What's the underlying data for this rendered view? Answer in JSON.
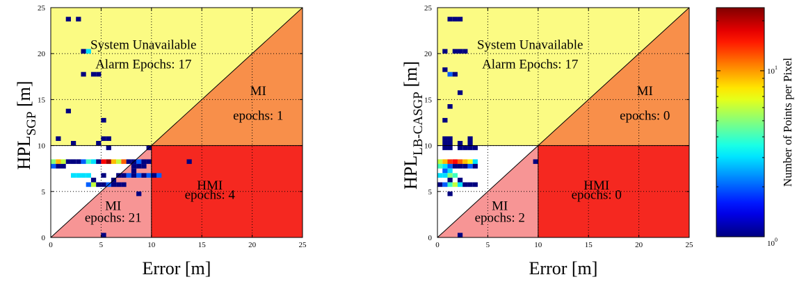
{
  "chart_data": [
    {
      "type": "heatmap",
      "xlabel": "Error [m]",
      "ylabel": {
        "main": "HPL",
        "sub": "SGP",
        "unit": "[m]"
      },
      "xlim": [
        0,
        25
      ],
      "ylim": [
        0,
        25
      ],
      "xticks": [
        "0",
        "5",
        "10",
        "15",
        "20",
        "25"
      ],
      "yticks": [
        "0",
        "5",
        "10",
        "15",
        "20",
        "25"
      ],
      "grid": true,
      "regions": [
        {
          "name": "System Unavailable",
          "color": "#fbfb83",
          "polygon": [
            [
              0,
              10
            ],
            [
              0,
              25
            ],
            [
              25,
              25
            ],
            [
              10,
              10
            ]
          ]
        },
        {
          "name": "MI (upper)",
          "color": "#f88f4a",
          "polygon": [
            [
              10,
              10
            ],
            [
              25,
              25
            ],
            [
              25,
              10
            ]
          ]
        },
        {
          "name": "HMI",
          "color": "#f52820",
          "polygon": [
            [
              10,
              0
            ],
            [
              10,
              10
            ],
            [
              25,
              10
            ],
            [
              25,
              0
            ]
          ]
        },
        {
          "name": "MI (lower)",
          "color": "#f79595",
          "polygon": [
            [
              0,
              0
            ],
            [
              10,
              10
            ],
            [
              10,
              0
            ]
          ]
        }
      ],
      "annotations": [
        {
          "text": "System Unavailable",
          "x": 9.2,
          "y": 20.5
        },
        {
          "text": "Alarm Epochs: 17",
          "x": 9.2,
          "y": 18.4
        },
        {
          "text": "MI",
          "x": 20.6,
          "y": 15.5
        },
        {
          "text": "epochs: 1",
          "x": 20.6,
          "y": 12.8
        },
        {
          "text": "HMI",
          "x": 15.8,
          "y": 5.2
        },
        {
          "text": "epochs: 4",
          "x": 15.8,
          "y": 4.2
        },
        {
          "text": "MI",
          "x": 6.2,
          "y": 3.0
        },
        {
          "text": "epochs: 21",
          "x": 6.2,
          "y": 1.7
        }
      ],
      "cell_width": 0.5,
      "cell_height": 0.5,
      "points": [
        [
          1.75,
          23.75,
          1
        ],
        [
          2.75,
          23.75,
          1
        ],
        [
          3.25,
          20.25,
          1
        ],
        [
          3.75,
          20.25,
          3
        ],
        [
          3.25,
          17.75,
          1
        ],
        [
          4.25,
          17.75,
          1
        ],
        [
          4.75,
          17.75,
          1
        ],
        [
          1.75,
          13.75,
          1
        ],
        [
          5.25,
          12.75,
          1
        ],
        [
          0.75,
          10.75,
          1
        ],
        [
          5.25,
          10.75,
          1
        ],
        [
          5.75,
          10.75,
          1
        ],
        [
          2.25,
          10.25,
          1
        ],
        [
          4.75,
          10.25,
          1
        ],
        [
          5.75,
          9.75,
          1
        ],
        [
          9.75,
          9.75,
          1
        ],
        [
          0.25,
          8.25,
          5
        ],
        [
          0.75,
          8.25,
          9
        ],
        [
          1.25,
          8.25,
          6
        ],
        [
          1.75,
          8.25,
          1
        ],
        [
          2.25,
          8.25,
          1
        ],
        [
          2.75,
          8.25,
          1
        ],
        [
          3.25,
          8.25,
          2
        ],
        [
          3.75,
          8.25,
          4
        ],
        [
          4.25,
          8.25,
          3
        ],
        [
          4.75,
          8.25,
          1
        ],
        [
          5.25,
          8.25,
          16
        ],
        [
          5.75,
          8.25,
          22
        ],
        [
          6.25,
          8.25,
          9
        ],
        [
          6.75,
          8.25,
          6
        ],
        [
          7.25,
          8.25,
          12
        ],
        [
          7.75,
          8.25,
          1
        ],
        [
          8.25,
          8.25,
          1
        ],
        [
          8.75,
          8.25,
          2
        ],
        [
          9.25,
          8.25,
          1
        ],
        [
          9.75,
          8.25,
          1
        ],
        [
          13.75,
          8.25,
          1
        ],
        [
          0.25,
          7.75,
          2
        ],
        [
          0.75,
          7.75,
          1
        ],
        [
          1.25,
          7.75,
          1
        ],
        [
          8.25,
          7.75,
          1
        ],
        [
          8.75,
          7.75,
          1
        ],
        [
          9.25,
          7.75,
          1
        ],
        [
          8.25,
          7.25,
          1
        ],
        [
          2.25,
          6.75,
          3
        ],
        [
          2.75,
          6.75,
          3
        ],
        [
          3.25,
          6.75,
          3
        ],
        [
          3.75,
          6.75,
          3
        ],
        [
          5.25,
          6.75,
          1
        ],
        [
          6.75,
          6.75,
          1
        ],
        [
          7.25,
          6.75,
          1
        ],
        [
          7.75,
          6.75,
          2
        ],
        [
          8.25,
          6.75,
          1
        ],
        [
          8.75,
          6.75,
          2
        ],
        [
          9.25,
          6.75,
          1
        ],
        [
          9.75,
          6.75,
          2
        ],
        [
          10.25,
          6.75,
          1
        ],
        [
          10.75,
          6.75,
          2
        ],
        [
          4.25,
          6.25,
          1
        ],
        [
          6.25,
          6.25,
          1
        ],
        [
          3.75,
          5.75,
          2
        ],
        [
          4.25,
          5.75,
          6
        ],
        [
          4.75,
          5.75,
          1
        ],
        [
          5.25,
          5.75,
          1
        ],
        [
          5.75,
          5.75,
          2
        ],
        [
          6.25,
          5.75,
          1
        ],
        [
          6.75,
          5.75,
          1
        ],
        [
          7.25,
          5.75,
          1
        ],
        [
          8.75,
          4.75,
          1
        ],
        [
          5.25,
          0.25,
          1
        ]
      ]
    },
    {
      "type": "heatmap",
      "xlabel": "Error [m]",
      "ylabel": {
        "main": "HPL",
        "sub": "LB-CASGP",
        "unit": "[m]"
      },
      "xlim": [
        0,
        25
      ],
      "ylim": [
        0,
        25
      ],
      "xticks": [
        "0",
        "5",
        "10",
        "15",
        "20",
        "25"
      ],
      "yticks": [
        "0",
        "5",
        "10",
        "15",
        "20",
        "25"
      ],
      "grid": true,
      "regions": [
        {
          "name": "System Unavailable",
          "color": "#fbfb83",
          "polygon": [
            [
              0,
              10
            ],
            [
              0,
              25
            ],
            [
              25,
              25
            ],
            [
              10,
              10
            ]
          ]
        },
        {
          "name": "MI (upper)",
          "color": "#f88f4a",
          "polygon": [
            [
              10,
              10
            ],
            [
              25,
              25
            ],
            [
              25,
              10
            ]
          ]
        },
        {
          "name": "HMI",
          "color": "#f52820",
          "polygon": [
            [
              10,
              0
            ],
            [
              10,
              10
            ],
            [
              25,
              10
            ],
            [
              25,
              0
            ]
          ]
        },
        {
          "name": "MI (lower)",
          "color": "#f79595",
          "polygon": [
            [
              0,
              0
            ],
            [
              10,
              10
            ],
            [
              10,
              0
            ]
          ]
        }
      ],
      "annotations": [
        {
          "text": "System Unavailable",
          "x": 9.2,
          "y": 20.5
        },
        {
          "text": "Alarm Epochs: 17",
          "x": 9.2,
          "y": 18.4
        },
        {
          "text": "MI",
          "x": 20.6,
          "y": 15.5
        },
        {
          "text": "epochs: 0",
          "x": 20.6,
          "y": 12.8
        },
        {
          "text": "HMI",
          "x": 15.8,
          "y": 5.2
        },
        {
          "text": "epochs: 0",
          "x": 15.8,
          "y": 4.2
        },
        {
          "text": "MI",
          "x": 6.2,
          "y": 3.0
        },
        {
          "text": "epochs: 2",
          "x": 6.2,
          "y": 1.7
        }
      ],
      "cell_width": 0.5,
      "cell_height": 0.5,
      "points": [
        [
          1.25,
          23.75,
          1
        ],
        [
          1.75,
          23.75,
          1
        ],
        [
          2.25,
          23.75,
          1
        ],
        [
          0.75,
          20.25,
          1
        ],
        [
          1.75,
          20.25,
          1
        ],
        [
          2.25,
          20.25,
          1
        ],
        [
          2.75,
          20.25,
          1
        ],
        [
          0.75,
          18.25,
          1
        ],
        [
          1.25,
          17.75,
          2
        ],
        [
          1.75,
          17.75,
          1
        ],
        [
          2.25,
          15.75,
          1
        ],
        [
          1.25,
          14.25,
          1
        ],
        [
          0.75,
          12.75,
          1
        ],
        [
          0.75,
          10.75,
          1
        ],
        [
          1.25,
          10.75,
          1
        ],
        [
          3.25,
          10.75,
          1
        ],
        [
          0.75,
          10.25,
          1
        ],
        [
          1.25,
          10.25,
          1
        ],
        [
          2.25,
          10.25,
          1
        ],
        [
          3.25,
          10.25,
          1
        ],
        [
          0.75,
          9.75,
          1
        ],
        [
          1.25,
          9.75,
          1
        ],
        [
          2.25,
          9.75,
          1
        ],
        [
          2.75,
          9.75,
          1
        ],
        [
          3.25,
          9.75,
          1
        ],
        [
          3.75,
          9.75,
          1
        ],
        [
          0.25,
          8.25,
          6
        ],
        [
          0.75,
          8.25,
          9
        ],
        [
          1.25,
          8.25,
          14
        ],
        [
          1.75,
          8.25,
          16
        ],
        [
          2.25,
          8.25,
          12
        ],
        [
          2.75,
          8.25,
          9
        ],
        [
          3.25,
          8.25,
          7
        ],
        [
          3.75,
          8.25,
          3
        ],
        [
          9.75,
          8.25,
          1
        ],
        [
          0.25,
          7.75,
          4
        ],
        [
          0.75,
          7.75,
          3
        ],
        [
          1.25,
          7.75,
          2
        ],
        [
          1.75,
          7.75,
          1
        ],
        [
          2.25,
          7.75,
          1
        ],
        [
          2.75,
          7.75,
          1
        ],
        [
          3.25,
          7.75,
          2
        ],
        [
          3.75,
          7.75,
          1
        ],
        [
          0.75,
          7.25,
          2
        ],
        [
          1.25,
          7.25,
          3
        ],
        [
          0.25,
          6.75,
          3
        ],
        [
          0.75,
          6.75,
          3
        ],
        [
          1.25,
          6.75,
          5
        ],
        [
          1.75,
          6.75,
          4
        ],
        [
          1.25,
          6.25,
          1
        ],
        [
          2.25,
          6.25,
          1
        ],
        [
          0.25,
          5.75,
          1
        ],
        [
          0.75,
          5.75,
          2
        ],
        [
          1.25,
          5.75,
          4
        ],
        [
          1.75,
          5.75,
          6
        ],
        [
          2.25,
          5.75,
          3
        ],
        [
          2.75,
          5.75,
          1
        ],
        [
          3.25,
          5.75,
          1
        ],
        [
          3.75,
          5.75,
          1
        ],
        [
          1.25,
          4.75,
          1
        ],
        [
          2.25,
          0.25,
          1
        ]
      ]
    }
  ],
  "colorbar": {
    "label": "Number of Points per Pixel",
    "scale": "log",
    "range": [
      1,
      24
    ],
    "tick_labels": [
      {
        "base": "10",
        "exp": "0",
        "value": 1
      },
      {
        "base": "10",
        "exp": "1",
        "value": 10
      }
    ],
    "colormap": "jet"
  }
}
